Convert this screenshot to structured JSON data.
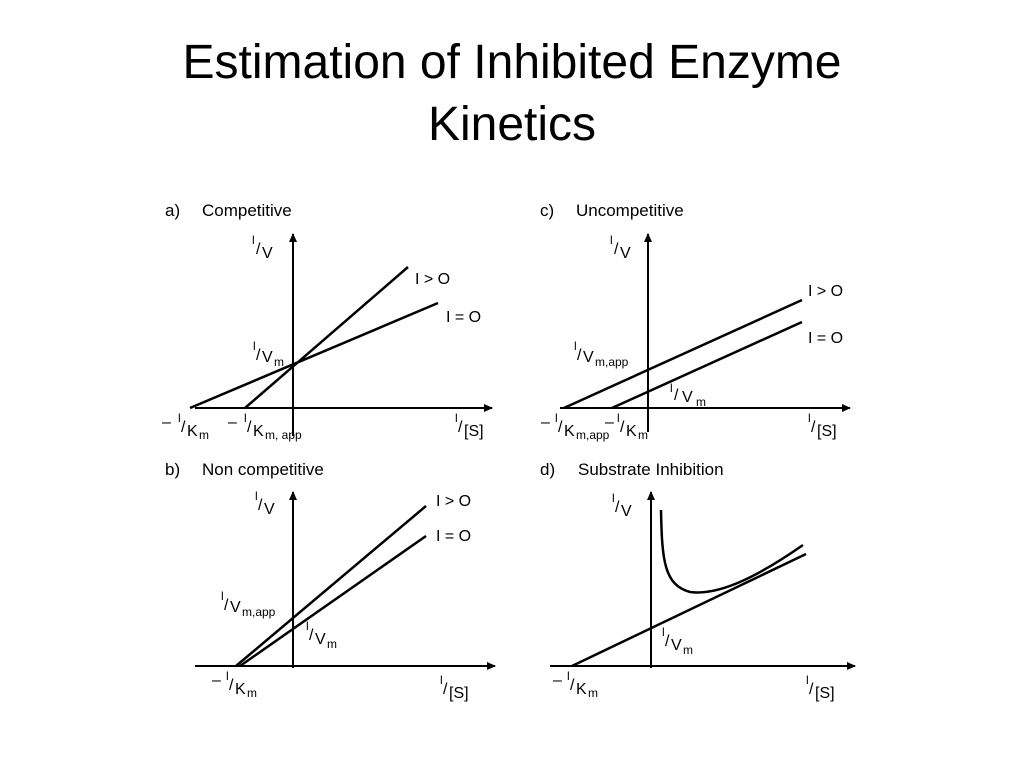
{
  "slide": {
    "title_line1": "Estimation of Inhibited Enzyme",
    "title_line2": "Kinetics"
  },
  "panels": {
    "a": {
      "letter": "a)",
      "name": "Competitive",
      "y_axis": {
        "sup": "l",
        "main": "V"
      },
      "x_axis": {
        "sup": "l",
        "main": "[S]"
      },
      "line_inhibited": "I > O",
      "line_uninhibited": "I = O",
      "intercept_y": {
        "sup": "l",
        "main": "V",
        "sub": "m"
      },
      "intercept_x1": {
        "prefix": "–",
        "sup": "l",
        "main": "K",
        "sub": "m"
      },
      "intercept_x2": {
        "prefix": "–",
        "sup": "l",
        "main": "K",
        "sub": "m, app"
      }
    },
    "b": {
      "letter": "b)",
      "name": "Non competitive",
      "y_axis": {
        "sup": "l",
        "main": "V"
      },
      "x_axis": {
        "sup": "l",
        "main": "[S]"
      },
      "line_inhibited": "I > O",
      "line_uninhibited": "I = O",
      "intercept_y1": {
        "sup": "l",
        "main": "V",
        "sub": "m,app"
      },
      "intercept_y2": {
        "sup": "l",
        "main": "V",
        "sub": "m"
      },
      "intercept_x": {
        "prefix": "–",
        "sup": "l",
        "main": "K",
        "sub": "m"
      }
    },
    "c": {
      "letter": "c)",
      "name": "Uncompetitive",
      "y_axis": {
        "sup": "l",
        "main": "V"
      },
      "x_axis": {
        "sup": "l",
        "main": "[S]"
      },
      "line_inhibited": "I > O",
      "line_uninhibited": "I = O",
      "intercept_y1": {
        "sup": "l",
        "main": "V",
        "sub": "m,app"
      },
      "intercept_y2": {
        "sup": "l",
        "main": "V",
        "sub": "m"
      },
      "intercept_x1": {
        "prefix": "–",
        "sup": "l",
        "main": "K",
        "sub": "m,app"
      },
      "intercept_x2": {
        "prefix": "–",
        "sup": "l",
        "main": "K",
        "sub": "m"
      }
    },
    "d": {
      "letter": "d)",
      "name": "Substrate Inhibition",
      "y_axis": {
        "sup": "l",
        "main": "V"
      },
      "x_axis": {
        "sup": "l",
        "main": "[S]"
      },
      "intercept_y": {
        "sup": "l",
        "main": "V",
        "sub": "m"
      },
      "intercept_x": {
        "prefix": "–",
        "sup": "l",
        "main": "K",
        "sub": "m"
      }
    }
  }
}
